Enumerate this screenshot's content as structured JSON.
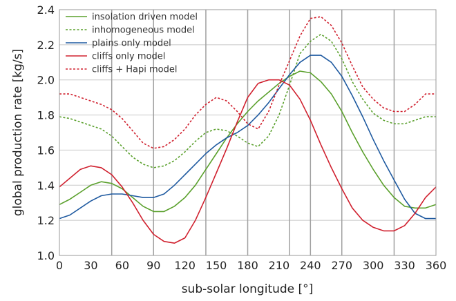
{
  "chart_data": {
    "type": "line",
    "xlabel": "sub-solar longitude [°]",
    "ylabel": "global production rate [kg/s]",
    "xlim": [
      0,
      360
    ],
    "ylim": [
      1.0,
      2.4
    ],
    "x_ticks": [
      0,
      30,
      60,
      90,
      120,
      150,
      180,
      210,
      240,
      270,
      300,
      330,
      360
    ],
    "y_ticks": [
      1.0,
      1.2,
      1.4,
      1.6,
      1.8,
      2.0,
      2.2,
      2.4
    ],
    "x_tick_labels": [
      "0",
      "30",
      "60",
      "90",
      "120",
      "150",
      "180",
      "210",
      "240",
      "270",
      "300",
      "330",
      "360"
    ],
    "y_tick_labels": [
      "1.0",
      "1.2",
      "1.4",
      "1.6",
      "1.8",
      "2.0",
      "2.2",
      "2.4"
    ],
    "vertical_gridlines_at": [
      50,
      90,
      140,
      180,
      220,
      240,
      270,
      320
    ],
    "legend_position": "top-left",
    "x": [
      0,
      10,
      20,
      30,
      40,
      50,
      60,
      70,
      80,
      90,
      100,
      110,
      120,
      130,
      140,
      150,
      160,
      170,
      180,
      190,
      200,
      210,
      220,
      230,
      240,
      250,
      260,
      270,
      280,
      290,
      300,
      310,
      320,
      330,
      340,
      350,
      360
    ],
    "series": [
      {
        "name": "insolation driven model",
        "color": "#5aa02c",
        "dash": "solid",
        "values": [
          1.29,
          1.32,
          1.36,
          1.4,
          1.42,
          1.41,
          1.38,
          1.33,
          1.28,
          1.25,
          1.25,
          1.28,
          1.33,
          1.4,
          1.49,
          1.58,
          1.67,
          1.75,
          1.82,
          1.88,
          1.93,
          1.98,
          2.02,
          2.05,
          2.04,
          1.99,
          1.92,
          1.82,
          1.7,
          1.59,
          1.49,
          1.4,
          1.33,
          1.28,
          1.27,
          1.27,
          1.29
        ]
      },
      {
        "name": "inhomogeneous model",
        "color": "#5aa02c",
        "dash": "dotted",
        "values": [
          1.79,
          1.78,
          1.76,
          1.74,
          1.72,
          1.68,
          1.62,
          1.56,
          1.52,
          1.5,
          1.51,
          1.54,
          1.59,
          1.65,
          1.7,
          1.72,
          1.71,
          1.68,
          1.64,
          1.62,
          1.68,
          1.8,
          1.97,
          2.15,
          2.22,
          2.26,
          2.22,
          2.12,
          1.99,
          1.89,
          1.81,
          1.77,
          1.75,
          1.75,
          1.77,
          1.79,
          1.79
        ]
      },
      {
        "name": "plains only model",
        "color": "#1f5aa0",
        "dash": "solid",
        "values": [
          1.21,
          1.23,
          1.27,
          1.31,
          1.34,
          1.35,
          1.35,
          1.34,
          1.33,
          1.33,
          1.35,
          1.4,
          1.46,
          1.52,
          1.58,
          1.63,
          1.67,
          1.7,
          1.74,
          1.8,
          1.87,
          1.95,
          2.03,
          2.1,
          2.14,
          2.14,
          2.1,
          2.02,
          1.91,
          1.79,
          1.66,
          1.54,
          1.43,
          1.32,
          1.24,
          1.21,
          1.21
        ]
      },
      {
        "name": "cliffs only model",
        "color": "#d0202e",
        "dash": "solid",
        "values": [
          1.39,
          1.44,
          1.49,
          1.51,
          1.5,
          1.46,
          1.39,
          1.3,
          1.2,
          1.12,
          1.08,
          1.07,
          1.1,
          1.2,
          1.33,
          1.47,
          1.61,
          1.76,
          1.9,
          1.98,
          2.0,
          2.0,
          1.97,
          1.89,
          1.77,
          1.63,
          1.5,
          1.38,
          1.27,
          1.2,
          1.16,
          1.14,
          1.14,
          1.17,
          1.24,
          1.33,
          1.39
        ]
      },
      {
        "name": "cliffs + Hapi model",
        "color": "#d0202e",
        "dash": "dotted",
        "values": [
          1.92,
          1.92,
          1.9,
          1.88,
          1.86,
          1.83,
          1.78,
          1.71,
          1.64,
          1.61,
          1.62,
          1.66,
          1.72,
          1.8,
          1.86,
          1.9,
          1.88,
          1.82,
          1.75,
          1.72,
          1.82,
          1.97,
          2.11,
          2.25,
          2.35,
          2.36,
          2.31,
          2.21,
          2.08,
          1.96,
          1.89,
          1.84,
          1.82,
          1.82,
          1.86,
          1.92,
          1.92
        ]
      }
    ]
  }
}
